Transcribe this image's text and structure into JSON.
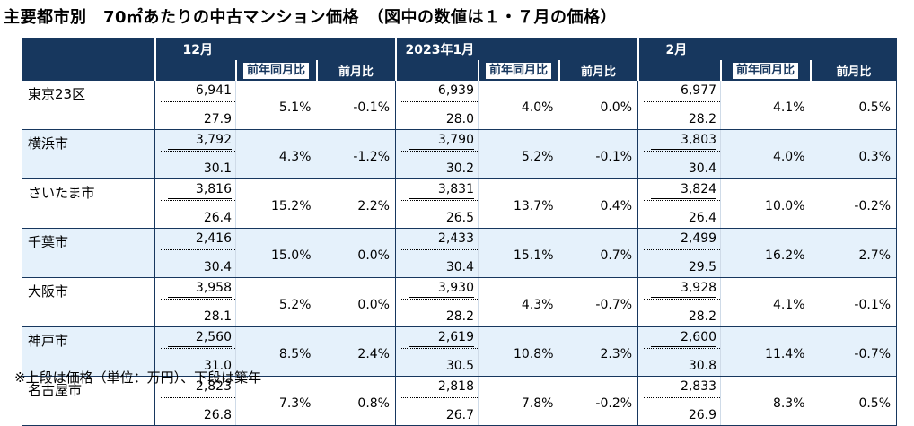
{
  "title": "主要都市別　70㎡あたりの中古マンション価格　（図中の数値は１・７月の価格）",
  "months": [
    "12月",
    "2023年1月",
    "2月"
  ],
  "sub_headers": {
    "yoy": "前年同月比",
    "mom": "前月比"
  },
  "rows": [
    {
      "city": "東京23区",
      "data": [
        {
          "price": "6,941",
          "age": "27.9",
          "yoy": "5.1%",
          "mom": "-0.1%"
        },
        {
          "price": "6,939",
          "age": "28.0",
          "yoy": "4.0%",
          "mom": "0.0%"
        },
        {
          "price": "6,977",
          "age": "28.2",
          "yoy": "4.1%",
          "mom": "0.5%"
        }
      ]
    },
    {
      "city": "横浜市",
      "data": [
        {
          "price": "3,792",
          "age": "30.1",
          "yoy": "4.3%",
          "mom": "-1.2%"
        },
        {
          "price": "3,790",
          "age": "30.2",
          "yoy": "5.2%",
          "mom": "-0.1%"
        },
        {
          "price": "3,803",
          "age": "30.4",
          "yoy": "4.0%",
          "mom": "0.3%"
        }
      ]
    },
    {
      "city": "さいたま市",
      "data": [
        {
          "price": "3,816",
          "age": "26.4",
          "yoy": "15.2%",
          "mom": "2.2%"
        },
        {
          "price": "3,831",
          "age": "26.5",
          "yoy": "13.7%",
          "mom": "0.4%"
        },
        {
          "price": "3,824",
          "age": "26.4",
          "yoy": "10.0%",
          "mom": "-0.2%"
        }
      ]
    },
    {
      "city": "千葉市",
      "data": [
        {
          "price": "2,416",
          "age": "30.4",
          "yoy": "15.0%",
          "mom": "0.0%"
        },
        {
          "price": "2,433",
          "age": "30.4",
          "yoy": "15.1%",
          "mom": "0.7%"
        },
        {
          "price": "2,499",
          "age": "29.5",
          "yoy": "16.2%",
          "mom": "2.7%"
        }
      ]
    },
    {
      "city": "大阪市",
      "data": [
        {
          "price": "3,958",
          "age": "28.1",
          "yoy": "5.2%",
          "mom": "0.0%"
        },
        {
          "price": "3,930",
          "age": "28.2",
          "yoy": "4.3%",
          "mom": "-0.7%"
        },
        {
          "price": "3,928",
          "age": "28.2",
          "yoy": "4.1%",
          "mom": "-0.1%"
        }
      ]
    },
    {
      "city": "神戸市",
      "data": [
        {
          "price": "2,560",
          "age": "31.0",
          "yoy": "8.5%",
          "mom": "2.4%"
        },
        {
          "price": "2,619",
          "age": "30.5",
          "yoy": "10.8%",
          "mom": "2.3%"
        },
        {
          "price": "2,600",
          "age": "30.8",
          "yoy": "11.4%",
          "mom": "-0.7%"
        }
      ]
    },
    {
      "city": "名古屋市",
      "data": [
        {
          "price": "2,823",
          "age": "26.8",
          "yoy": "7.3%",
          "mom": "0.8%"
        },
        {
          "price": "2,818",
          "age": "26.7",
          "yoy": "7.8%",
          "mom": "-0.2%"
        },
        {
          "price": "2,833",
          "age": "26.9",
          "yoy": "8.3%",
          "mom": "0.5%"
        }
      ]
    }
  ],
  "footnote": "※上段は価格（単位：万円）、下段は築年",
  "colors": {
    "header_bg": "#17375e",
    "alt_row_bg": "#e5f1fb"
  }
}
